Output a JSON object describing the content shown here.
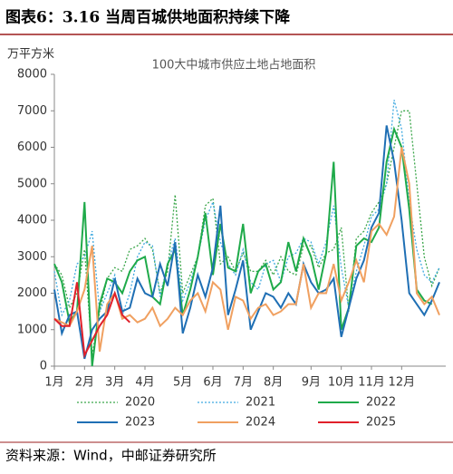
{
  "header": "图表6：3.16 当周百城供地面积持续下降",
  "source": "资料来源：Wind，中邮证券研究所",
  "chart_data": {
    "type": "line",
    "title": "100大中城市供应土地占地面积",
    "y_label": "万平方米",
    "categories": [
      "1月",
      null,
      null,
      null,
      "2月",
      null,
      null,
      null,
      "3月",
      null,
      null,
      null,
      "4月",
      null,
      null,
      null,
      null,
      "5月",
      null,
      null,
      null,
      "6月",
      null,
      null,
      null,
      "7月",
      null,
      null,
      null,
      "8月",
      null,
      null,
      null,
      null,
      "9月",
      null,
      null,
      null,
      "10月",
      null,
      null,
      null,
      "11月",
      null,
      null,
      null,
      "12月",
      null,
      null,
      null,
      null,
      null
    ],
    "ylim": [
      0,
      8000
    ],
    "yticks": [
      0,
      1000,
      2000,
      3000,
      4000,
      5000,
      6000,
      7000,
      8000
    ],
    "grid": false,
    "series": [
      {
        "name": "2020",
        "color": "#3aa64a",
        "dashed": true,
        "values": [
          2800,
          2500,
          1600,
          2000,
          3200,
          300,
          1500,
          2400,
          2700,
          2600,
          3200,
          3300,
          3500,
          3200,
          2000,
          2600,
          4700,
          2000,
          2500,
          3000,
          4400,
          4600,
          2800,
          3000,
          2600,
          3100,
          2600,
          2600,
          2900,
          2500,
          3000,
          2600,
          2500,
          3300,
          3300,
          2700,
          3100,
          3200,
          3800,
          1500,
          3500,
          3700,
          4200,
          4500,
          5000,
          6000,
          7000,
          7000,
          5000,
          3000,
          2200,
          2700
        ]
      },
      {
        "name": "2021",
        "color": "#3fa9e0",
        "dashed": true,
        "values": [
          2600,
          1400,
          1800,
          2800,
          3000,
          3700,
          1500,
          2000,
          2500,
          1400,
          2000,
          3000,
          3400,
          3300,
          1900,
          2800,
          3500,
          1800,
          2300,
          3000,
          4000,
          4500,
          3400,
          2800,
          2500,
          3200,
          2300,
          2100,
          2800,
          2900,
          2300,
          3000,
          3100,
          3500,
          3400,
          2800,
          3400,
          4400,
          2700,
          1600,
          2600,
          3300,
          4100,
          4300,
          5000,
          7300,
          6500,
          4500,
          3200,
          2500,
          2300,
          2700
        ]
      },
      {
        "name": "2022",
        "color": "#1faa4a",
        "dashed": false,
        "values": [
          2800,
          2300,
          1200,
          1500,
          4500,
          0,
          1700,
          2400,
          2300,
          2000,
          2600,
          2900,
          3000,
          1900,
          1700,
          2800,
          3200,
          1400,
          2100,
          3000,
          4200,
          2500,
          3900,
          2700,
          2600,
          3900,
          2000,
          2600,
          2800,
          2100,
          2300,
          3400,
          2600,
          3500,
          3000,
          2100,
          3100,
          5600,
          1000,
          1600,
          3300,
          3500,
          3400,
          3800,
          5600,
          6500,
          6000,
          4300,
          2100,
          1800,
          1700,
          null
        ]
      },
      {
        "name": "2023",
        "color": "#1f6fb4",
        "dashed": false,
        "values": [
          2100,
          900,
          1400,
          1500,
          200,
          1000,
          1300,
          1500,
          2400,
          1500,
          1600,
          2400,
          2000,
          1900,
          2800,
          2200,
          3400,
          900,
          1600,
          2500,
          1900,
          2700,
          4400,
          1400,
          2100,
          2900,
          1000,
          1500,
          2000,
          1900,
          1600,
          2000,
          1700,
          2800,
          2300,
          2000,
          2100,
          2400,
          800,
          1600,
          2400,
          2900,
          3800,
          4200,
          6600,
          5600,
          4000,
          2000,
          1700,
          1400,
          1800,
          2300
        ]
      },
      {
        "name": "2024",
        "color": "#f0a060",
        "dashed": false,
        "values": [
          1300,
          1200,
          1100,
          1500,
          2100,
          3300,
          400,
          1700,
          2000,
          1300,
          1400,
          1200,
          1300,
          1600,
          1100,
          1300,
          1600,
          1400,
          1800,
          2000,
          1500,
          2300,
          2100,
          1000,
          1900,
          1800,
          1300,
          1600,
          1700,
          1400,
          1500,
          1700,
          1700,
          2800,
          1600,
          2000,
          2000,
          2800,
          1800,
          2300,
          2900,
          2300,
          3700,
          3900,
          3600,
          4100,
          6000,
          5000,
          2000,
          1700,
          1900,
          1400
        ]
      },
      {
        "name": "2025",
        "color": "#e0202a",
        "dashed": false,
        "values": [
          1300,
          1100,
          1100,
          2300,
          300,
          700,
          1100,
          1400,
          2000,
          1400,
          1200,
          null,
          null,
          null,
          null,
          null,
          null,
          null,
          null,
          null,
          null,
          null,
          null,
          null,
          null,
          null,
          null,
          null,
          null,
          null,
          null,
          null,
          null,
          null,
          null,
          null,
          null,
          null,
          null,
          null,
          null,
          null,
          null,
          null,
          null,
          null,
          null,
          null,
          null,
          null,
          null,
          null
        ]
      }
    ]
  }
}
